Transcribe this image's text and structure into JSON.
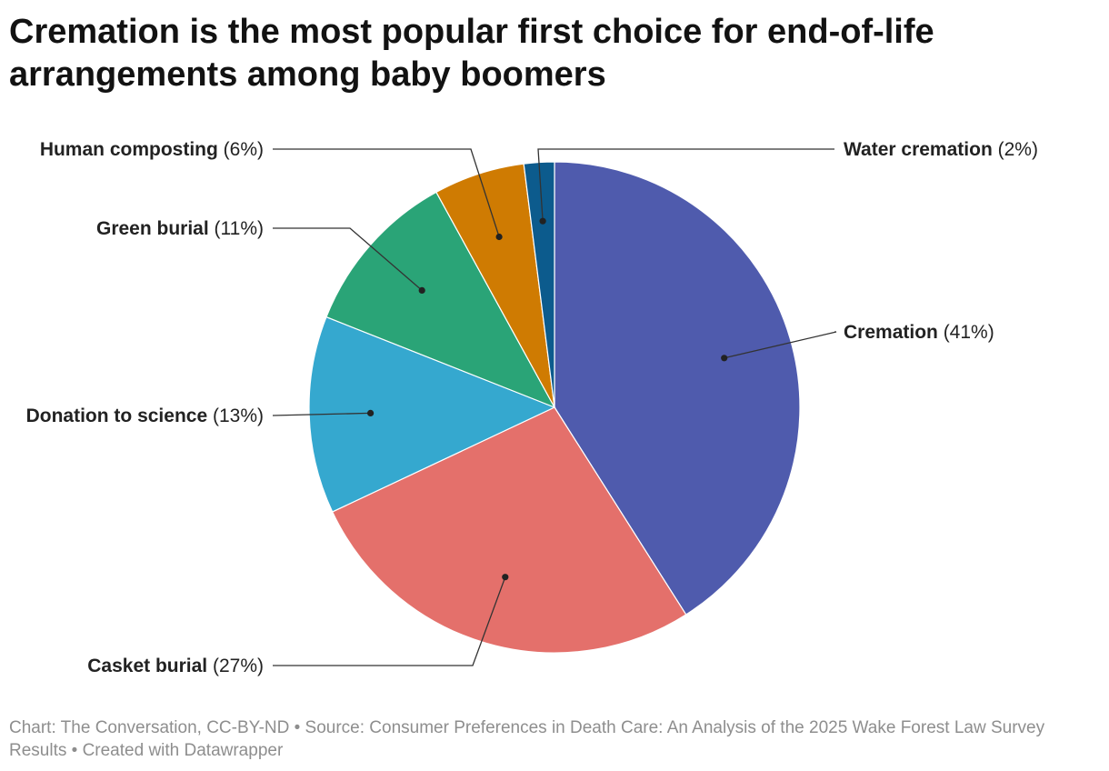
{
  "title": "Cremation is the most popular first choice for end-of-life arrangements among baby boomers",
  "footer": "Chart: The Conversation, CC-BY-ND • Source: Consumer Preferences in Death Care: An Analysis of the 2025 Wake Forest Law Survey Results • Created with Datawrapper",
  "chart_data": {
    "type": "pie",
    "unit": "%",
    "slices": [
      {
        "label": "Cremation",
        "value_text": "(41%)",
        "value": 41,
        "color": "#4f5bad"
      },
      {
        "label": "Casket burial",
        "value_text": "(27%)",
        "value": 27,
        "color": "#e4706b"
      },
      {
        "label": "Donation to science",
        "value_text": "(13%)",
        "value": 13,
        "color": "#35a8cf"
      },
      {
        "label": "Green burial",
        "value_text": "(11%)",
        "value": 11,
        "color": "#2aa477"
      },
      {
        "label": "Human composting",
        "value_text": "(6%)",
        "value": 6,
        "color": "#cf7b02"
      },
      {
        "label": "Water cremation",
        "value_text": "(2%)",
        "value": 2,
        "color": "#0c5b8d"
      }
    ]
  }
}
